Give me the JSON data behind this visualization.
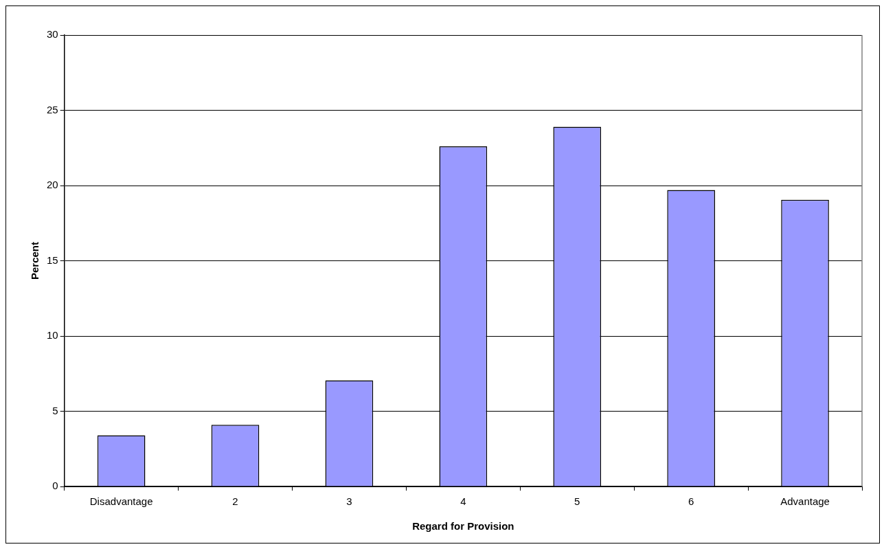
{
  "chart_data": {
    "type": "bar",
    "xlabel": "Regard for Provision",
    "ylabel": "Percent",
    "categories": [
      "Disadvantage",
      "2",
      "3",
      "4",
      "5",
      "6",
      "Advantage"
    ],
    "values": [
      3.4,
      4.1,
      7.05,
      22.6,
      23.9,
      19.7,
      19.05
    ],
    "color": "#9999ff",
    "ylim": [
      0,
      30
    ],
    "yticks": [
      0,
      5,
      10,
      15,
      20,
      25,
      30
    ],
    "grid": "y",
    "legend": false
  }
}
